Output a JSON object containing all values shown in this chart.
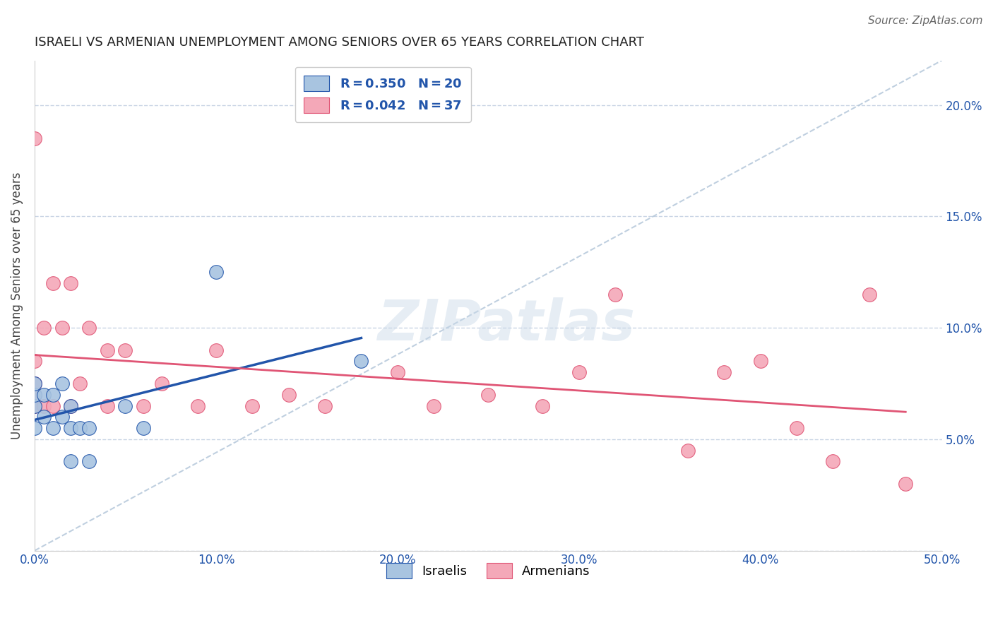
{
  "title": "ISRAELI VS ARMENIAN UNEMPLOYMENT AMONG SENIORS OVER 65 YEARS CORRELATION CHART",
  "source": "Source: ZipAtlas.com",
  "ylabel": "Unemployment Among Seniors over 65 years",
  "xlim": [
    0.0,
    0.5
  ],
  "ylim": [
    0.0,
    0.22
  ],
  "x_ticks": [
    0.0,
    0.1,
    0.2,
    0.3,
    0.4,
    0.5
  ],
  "x_tick_labels": [
    "0.0%",
    "10.0%",
    "20.0%",
    "30.0%",
    "40.0%",
    "50.0%"
  ],
  "y_ticks": [
    0.0,
    0.05,
    0.1,
    0.15,
    0.2
  ],
  "y_tick_labels": [
    "",
    "5.0%",
    "10.0%",
    "15.0%",
    "20.0%"
  ],
  "israeli_color": "#a8c4e0",
  "armenian_color": "#f4a8b8",
  "israeli_line_color": "#2255aa",
  "armenian_line_color": "#e05575",
  "diagonal_line_color": "#b0c4d8",
  "R_israeli": 0.35,
  "N_israeli": 20,
  "R_armenian": 0.042,
  "N_armenian": 37,
  "watermark_text": "ZIPatlas",
  "israelis_x": [
    0.0,
    0.0,
    0.0,
    0.0,
    0.005,
    0.005,
    0.01,
    0.01,
    0.015,
    0.015,
    0.02,
    0.02,
    0.02,
    0.025,
    0.03,
    0.03,
    0.05,
    0.06,
    0.1,
    0.18
  ],
  "israelis_y": [
    0.055,
    0.065,
    0.07,
    0.075,
    0.06,
    0.07,
    0.055,
    0.07,
    0.06,
    0.075,
    0.04,
    0.055,
    0.065,
    0.055,
    0.04,
    0.055,
    0.065,
    0.055,
    0.125,
    0.085
  ],
  "armenians_x": [
    0.0,
    0.0,
    0.0,
    0.0,
    0.0,
    0.005,
    0.005,
    0.01,
    0.01,
    0.015,
    0.02,
    0.02,
    0.025,
    0.03,
    0.04,
    0.04,
    0.05,
    0.06,
    0.07,
    0.09,
    0.1,
    0.12,
    0.14,
    0.16,
    0.2,
    0.22,
    0.25,
    0.28,
    0.3,
    0.32,
    0.36,
    0.38,
    0.4,
    0.42,
    0.44,
    0.46,
    0.48
  ],
  "armenians_y": [
    0.065,
    0.07,
    0.075,
    0.085,
    0.185,
    0.065,
    0.1,
    0.065,
    0.12,
    0.1,
    0.065,
    0.12,
    0.075,
    0.1,
    0.065,
    0.09,
    0.09,
    0.065,
    0.075,
    0.065,
    0.09,
    0.065,
    0.07,
    0.065,
    0.08,
    0.065,
    0.07,
    0.065,
    0.08,
    0.115,
    0.045,
    0.08,
    0.085,
    0.055,
    0.04,
    0.115,
    0.03
  ],
  "background_color": "#ffffff",
  "grid_color": "#c8d4e4",
  "title_color": "#222222",
  "tick_color": "#2255aa",
  "ylabel_color": "#444444"
}
